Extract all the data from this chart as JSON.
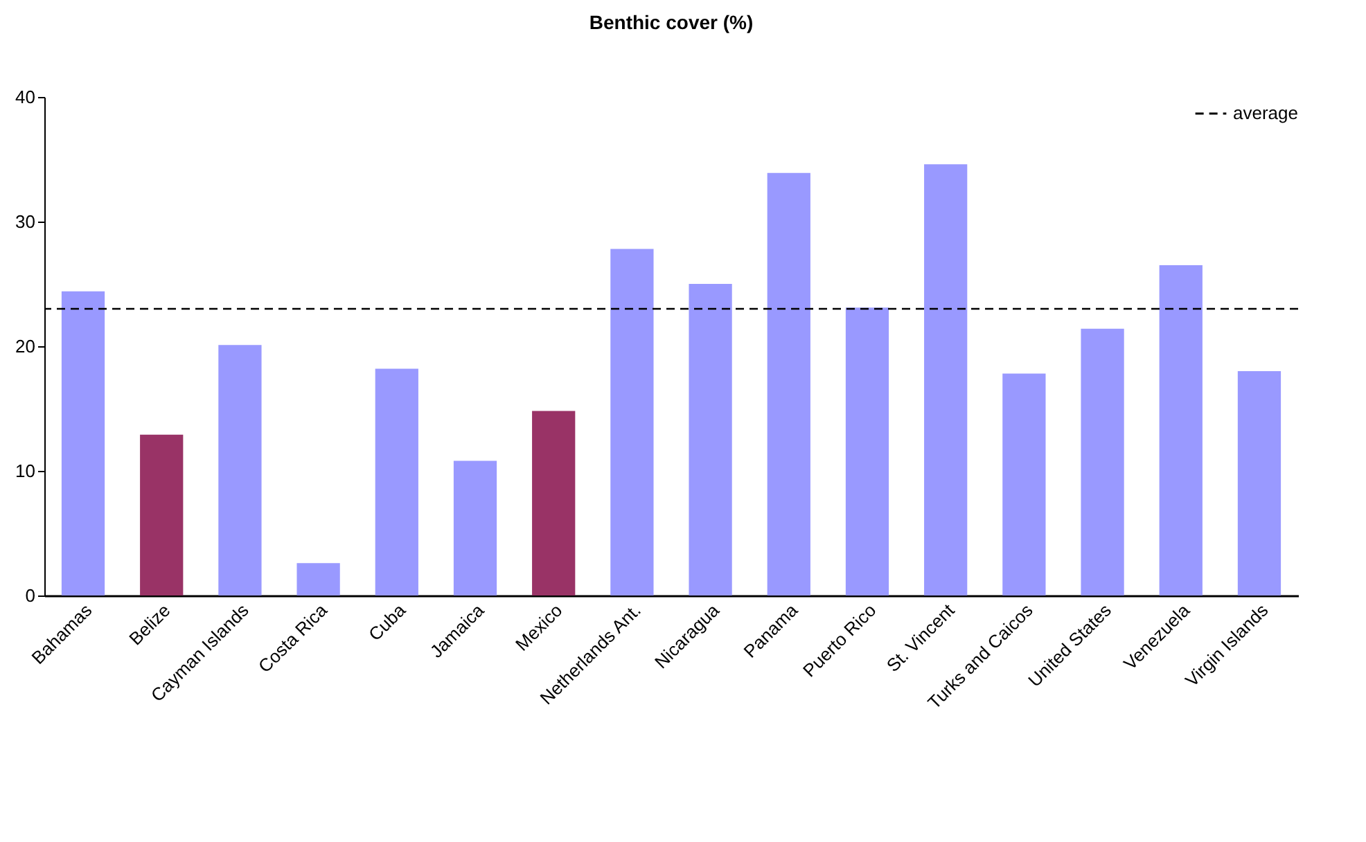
{
  "chart_data": {
    "type": "bar",
    "title": "Benthic cover (%)",
    "categories": [
      "Bahamas",
      "Belize",
      "Cayman Islands",
      "Costa Rica",
      "Cuba",
      "Jamaica",
      "Mexico",
      "Netherlands Ant.",
      "Nicaragua",
      "Panama",
      "Puerto Rico",
      "St. Vincent",
      "Turks and Caicos",
      "United States",
      "Venezuela",
      "Virgin Islands"
    ],
    "values": [
      24.4,
      12.9,
      20.1,
      2.6,
      18.2,
      10.8,
      14.8,
      27.8,
      25.0,
      33.9,
      23.1,
      34.6,
      17.8,
      21.4,
      26.5,
      18.0
    ],
    "colors": [
      "#9999ff",
      "#993366",
      "#9999ff",
      "#9999ff",
      "#9999ff",
      "#9999ff",
      "#993366",
      "#9999ff",
      "#9999ff",
      "#9999ff",
      "#9999ff",
      "#9999ff",
      "#9999ff",
      "#9999ff",
      "#9999ff",
      "#9999ff"
    ],
    "ylim": [
      0,
      40
    ],
    "yticks": [
      0,
      10,
      20,
      30,
      40
    ],
    "grid": false,
    "legend": "top right",
    "ref_lines": [
      {
        "axis": "y",
        "value": 23.0,
        "label": "average",
        "color": "#000000",
        "line_style": "dashed"
      }
    ]
  }
}
